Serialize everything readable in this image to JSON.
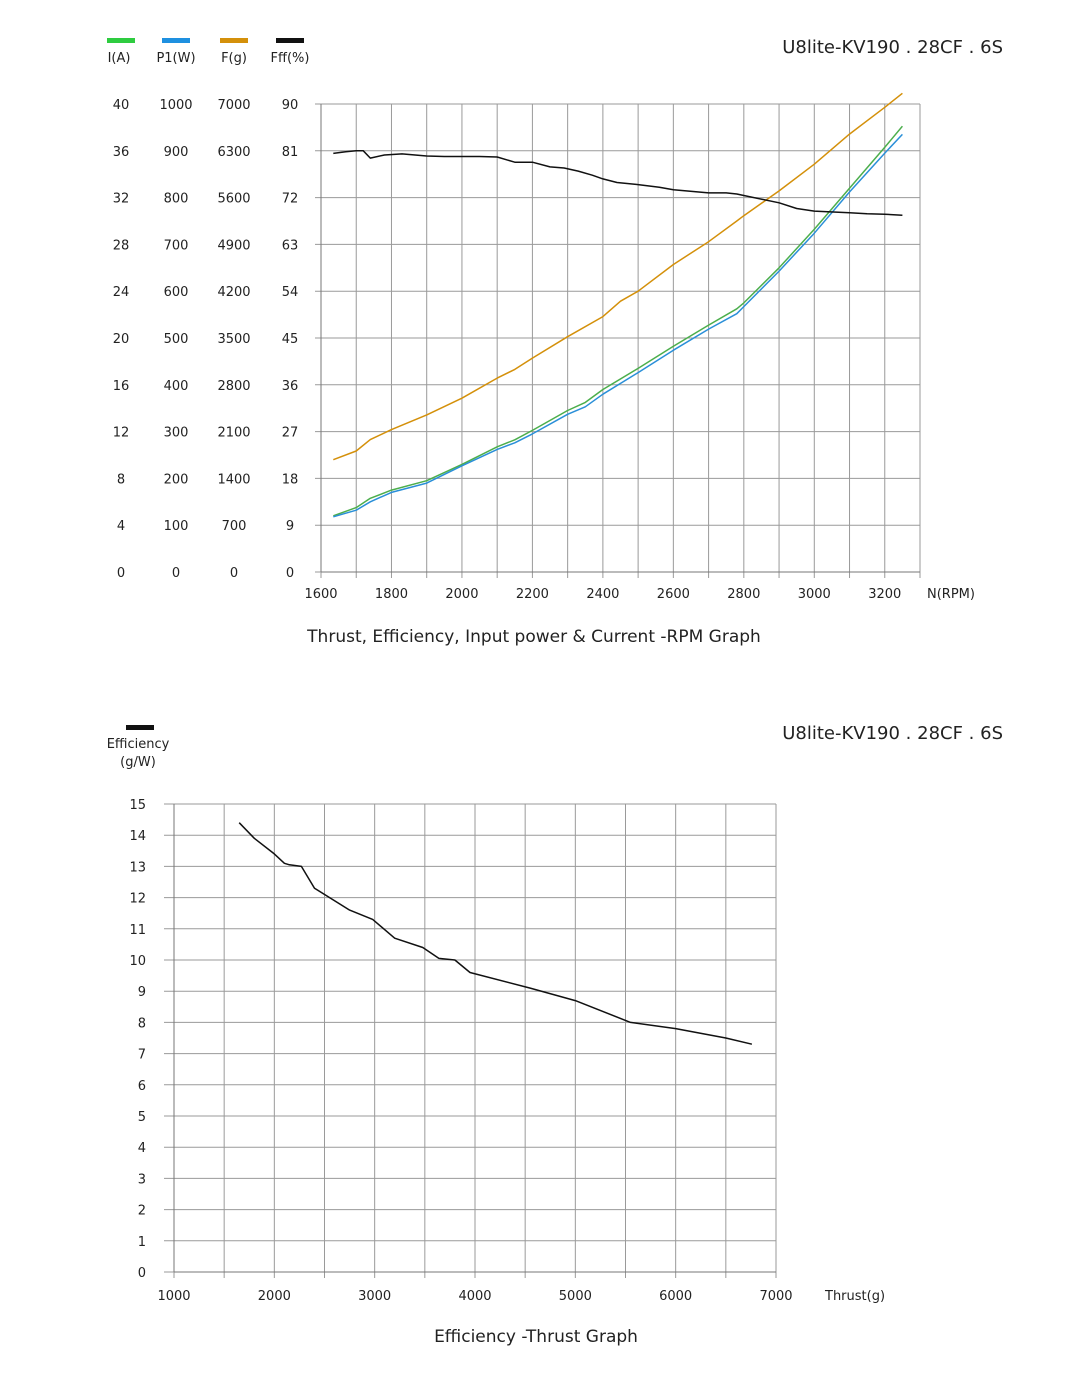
{
  "chart_data": [
    {
      "type": "line",
      "model": "U8lite-KV190 . 28CF . 6S",
      "caption": "Thrust, Efficiency, Input power & Current -RPM Graph",
      "xlabel": "N(RPM)",
      "xlim": [
        1600,
        3300
      ],
      "x_ticks": [
        "1600",
        "1800",
        "2000",
        "2200",
        "2400",
        "2600",
        "2800",
        "3000",
        "3200"
      ],
      "x_tick_values": [
        1600,
        1800,
        2000,
        2200,
        2400,
        2600,
        2800,
        3000,
        3200
      ],
      "grid": true,
      "axes": [
        {
          "key": "I",
          "label": "I(A)",
          "color": "#2ecc40",
          "max": 40,
          "ticks": [
            "40",
            "36",
            "32",
            "28",
            "24",
            "20",
            "16",
            "12",
            "8",
            "4",
            "0"
          ]
        },
        {
          "key": "P1",
          "label": "P1(W)",
          "color": "#1e90e0",
          "max": 1000,
          "ticks": [
            "1000",
            "900",
            "800",
            "700",
            "600",
            "500",
            "400",
            "300",
            "200",
            "100",
            "0"
          ]
        },
        {
          "key": "F",
          "label": "F(g)",
          "color": "#d4900a",
          "max": 7000,
          "ticks": [
            "7000",
            "6300",
            "5600",
            "4900",
            "4200",
            "3500",
            "2800",
            "2100",
            "1400",
            "700",
            "0"
          ]
        },
        {
          "key": "Eff",
          "label": "Fff(%)",
          "color": "#111111",
          "max": 90,
          "ticks": [
            "90",
            "81",
            "72",
            "63",
            "54",
            "45",
            "36",
            "27",
            "18",
            "9",
            "0"
          ]
        }
      ],
      "series": [
        {
          "name": "I(A)",
          "color": "#4cae4c",
          "x": [
            1635,
            1700,
            1740,
            1800,
            1900,
            2000,
            2100,
            2150,
            2200,
            2300,
            2350,
            2400,
            2500,
            2600,
            2700,
            2780,
            2800,
            2900,
            3000,
            3100,
            3200,
            3250
          ],
          "y": [
            4.8,
            5.5,
            6.3,
            7.0,
            7.8,
            9.2,
            10.7,
            11.3,
            12.1,
            13.8,
            14.5,
            15.6,
            17.4,
            19.3,
            21.1,
            22.5,
            23.0,
            26.0,
            29.3,
            32.8,
            36.3,
            38.1
          ]
        },
        {
          "name": "P1(W)",
          "color": "#2a8fd8",
          "x": [
            1635,
            1700,
            1740,
            1800,
            1900,
            2000,
            2100,
            2150,
            2200,
            2300,
            2350,
            2400,
            2500,
            2600,
            2700,
            2780,
            2800,
            2900,
            3000,
            3100,
            3200,
            3250
          ],
          "y": [
            118,
            132,
            150,
            170,
            190,
            227,
            262,
            276,
            295,
            337,
            353,
            380,
            426,
            474,
            519,
            552,
            567,
            643,
            724,
            812,
            895,
            935
          ]
        },
        {
          "name": "F(g)",
          "color": "#d4900a",
          "x": [
            1635,
            1700,
            1740,
            1800,
            1900,
            2000,
            2100,
            2150,
            2200,
            2300,
            2400,
            2450,
            2500,
            2600,
            2700,
            2780,
            2800,
            2900,
            3000,
            3100,
            3200,
            3250
          ],
          "y": [
            1680,
            1810,
            1980,
            2130,
            2350,
            2600,
            2900,
            3030,
            3200,
            3520,
            3820,
            4050,
            4200,
            4600,
            4940,
            5250,
            5330,
            5700,
            6100,
            6550,
            6950,
            7160
          ]
        },
        {
          "name": "Fff(%)",
          "color": "#111111",
          "x": [
            1635,
            1670,
            1700,
            1720,
            1740,
            1780,
            1830,
            1900,
            1950,
            2050,
            2100,
            2150,
            2200,
            2250,
            2290,
            2330,
            2370,
            2400,
            2440,
            2500,
            2560,
            2600,
            2700,
            2750,
            2780,
            2800,
            2900,
            2950,
            3000,
            3100,
            3150,
            3200,
            3250
          ],
          "y": [
            80.5,
            80.8,
            81.0,
            81.0,
            79.6,
            80.2,
            80.4,
            80.0,
            79.9,
            79.9,
            79.8,
            78.8,
            78.8,
            77.9,
            77.7,
            77.1,
            76.3,
            75.6,
            74.9,
            74.5,
            74.0,
            73.5,
            72.9,
            72.9,
            72.7,
            72.4,
            71.0,
            69.9,
            69.4,
            69.1,
            68.9,
            68.8,
            68.6
          ]
        }
      ]
    },
    {
      "type": "line",
      "model": "U8lite-KV190 . 28CF . 6S",
      "caption": "Efficiency -Thrust Graph",
      "legend_label_line1": "Efficiency",
      "legend_label_line2": "(g/W)",
      "xlabel": "Thrust(g)",
      "xlim": [
        1000,
        7000
      ],
      "ylim": [
        0,
        15
      ],
      "x_ticks": [
        "1000",
        "2000",
        "3000",
        "4000",
        "5000",
        "6000",
        "7000"
      ],
      "x_tick_values": [
        1000,
        2000,
        3000,
        4000,
        5000,
        6000,
        7000
      ],
      "y_ticks": [
        "15",
        "14",
        "13",
        "12",
        "11",
        "10",
        "9",
        "8",
        "7",
        "6",
        "5",
        "4",
        "3",
        "2",
        "1",
        "0"
      ],
      "y_tick_values": [
        15,
        14,
        13,
        12,
        11,
        10,
        9,
        8,
        7,
        6,
        5,
        4,
        3,
        2,
        1,
        0
      ],
      "grid": true,
      "series": [
        {
          "name": "Efficiency (g/W)",
          "color": "#111111",
          "x": [
            1650,
            1800,
            2000,
            2100,
            2150,
            2270,
            2400,
            2750,
            2980,
            3200,
            3480,
            3640,
            3800,
            3950,
            4550,
            5000,
            5550,
            6000,
            6500,
            6760
          ],
          "y": [
            14.4,
            13.9,
            13.4,
            13.1,
            13.05,
            13.0,
            12.3,
            11.6,
            11.3,
            10.7,
            10.4,
            10.05,
            10.0,
            9.6,
            9.1,
            8.7,
            8.0,
            7.8,
            7.5,
            7.3
          ]
        }
      ]
    }
  ]
}
